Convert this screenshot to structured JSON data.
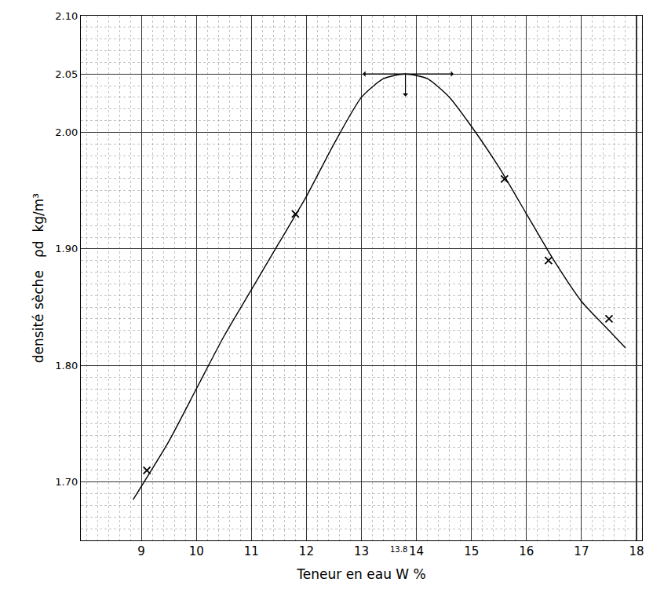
{
  "chart_data": {
    "type": "scatter",
    "xlabel": "Teneur en eau W %",
    "ylabel": "densité sèche   ρd  kg/m³",
    "xlim": [
      7.9,
      18.1
    ],
    "ylim": [
      1.65,
      2.1
    ],
    "xticks": [
      9,
      10,
      11,
      12,
      13,
      14,
      15,
      16,
      17,
      18
    ],
    "yticks": [
      {
        "value": 1.7,
        "label": "1.70"
      },
      {
        "value": 1.8,
        "label": "1.80"
      },
      {
        "value": 1.9,
        "label": "1.90"
      },
      {
        "value": 2.0,
        "label": "2.00"
      },
      2.05,
      {
        "value": 2.1,
        "label": "2.10"
      }
    ],
    "grid": true,
    "series": [
      {
        "type": "scatter",
        "marker": "x",
        "color": "#000000",
        "x": [
          9.1,
          11.8,
          15.6,
          16.4,
          17.5
        ],
        "values": [
          1.71,
          1.93,
          1.96,
          1.89,
          1.84
        ]
      },
      {
        "type": "line",
        "line_style": "solid",
        "color": "#000000",
        "x": [
          8.85,
          9.5,
          10,
          10.5,
          11,
          11.5,
          12,
          12.5,
          13,
          13.4,
          13.8,
          14.2,
          14.6,
          15,
          15.5,
          16,
          16.5,
          17,
          17.5,
          17.8
        ],
        "values": [
          1.685,
          1.735,
          1.78,
          1.825,
          1.865,
          1.905,
          1.945,
          1.99,
          2.03,
          2.046,
          2.05,
          2.046,
          2.03,
          2.005,
          1.97,
          1.93,
          1.89,
          1.855,
          1.83,
          1.815
        ]
      }
    ],
    "optimum": {
      "x": 13.8,
      "y": 2.05,
      "label": "13.8"
    }
  }
}
